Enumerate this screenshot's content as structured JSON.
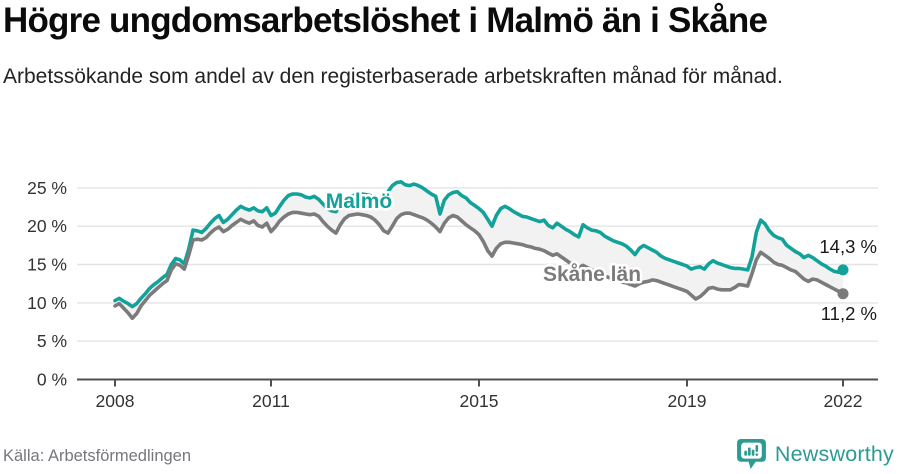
{
  "footer": {
    "source": "Källa: Arbetsförmedlingen",
    "logo_text": "Newsworthy",
    "logo_icon": "speech-bubble-bar-chart-icon"
  },
  "colors": {
    "malmo": "#13a29a",
    "skane": "#7b7b7b",
    "band": "#f2f2f2",
    "grid": "#e4e4e4",
    "axis": "#4f4f4f",
    "tick_label": "#333333",
    "end_label": "#1a1a1a",
    "title": "#0b0b0b",
    "subtitle": "#232323",
    "source": "#76767e",
    "logo": "#2d9a94"
  },
  "chart_data": {
    "type": "line",
    "title": "Högre ungdomsarbetslöshet i Malmö än i Skåne",
    "subtitle": "Arbetssökande som andel av den registerbaserade arbetskraften månad för månad.",
    "unit": "%",
    "grid": true,
    "legend_position": "inline-labels",
    "x_range": [
      2008.0,
      2022.0
    ],
    "ylim": [
      0,
      26.5
    ],
    "x_ticks": [
      {
        "year": 2008,
        "label": "2008"
      },
      {
        "year": 2011,
        "label": "2011"
      },
      {
        "year": 2015,
        "label": "2015"
      },
      {
        "year": 2019,
        "label": "2019"
      },
      {
        "year": 2022,
        "label": "2022"
      }
    ],
    "y_ticks": [
      {
        "value": 0,
        "label": "0 %"
      },
      {
        "value": 5,
        "label": "5 %"
      },
      {
        "value": 10,
        "label": "10 %"
      },
      {
        "value": 15,
        "label": "15 %"
      },
      {
        "value": 20,
        "label": "20 %"
      },
      {
        "value": 25,
        "label": "25 %"
      }
    ],
    "series": [
      {
        "name": "Malmö",
        "color_key": "malmo",
        "start_year": 2008,
        "interval_months": 1,
        "end_label": "14,3 %",
        "values": [
          10.3,
          10.6,
          10.2,
          9.9,
          9.5,
          9.9,
          10.6,
          11.2,
          11.9,
          12.4,
          12.8,
          13.3,
          13.7,
          15.0,
          15.8,
          15.6,
          15.1,
          17.0,
          19.5,
          19.4,
          19.2,
          19.7,
          20.4,
          21.0,
          21.4,
          20.5,
          20.9,
          21.5,
          22.1,
          22.6,
          22.3,
          22.1,
          22.4,
          22.0,
          21.9,
          22.4,
          21.4,
          21.7,
          22.6,
          23.4,
          24.0,
          24.2,
          24.2,
          24.1,
          23.8,
          23.7,
          23.9,
          23.5,
          22.9,
          22.3,
          22.0,
          21.9,
          22.8,
          23.4,
          23.9,
          24.0,
          24.2,
          24.2,
          24.1,
          24.0,
          23.7,
          23.4,
          23.8,
          24.5,
          25.3,
          25.7,
          25.8,
          25.4,
          25.3,
          25.5,
          25.3,
          25.0,
          24.6,
          24.2,
          23.9,
          21.6,
          23.4,
          24.1,
          24.4,
          24.5,
          24.0,
          23.7,
          23.1,
          22.7,
          22.3,
          21.8,
          20.9,
          20.0,
          21.4,
          22.3,
          22.6,
          22.3,
          21.9,
          21.6,
          21.3,
          21.2,
          21.0,
          20.8,
          20.6,
          20.8,
          20.1,
          19.8,
          20.4,
          20.0,
          19.6,
          19.3,
          18.9,
          18.6,
          20.2,
          19.8,
          19.5,
          19.4,
          19.2,
          18.7,
          18.4,
          18.1,
          17.9,
          17.7,
          17.4,
          16.9,
          16.3,
          17.1,
          17.5,
          17.2,
          16.9,
          16.6,
          16.1,
          15.8,
          15.6,
          15.4,
          15.2,
          15.0,
          14.8,
          14.4,
          14.6,
          14.7,
          14.4,
          15.1,
          15.5,
          15.2,
          15.0,
          14.8,
          14.6,
          14.5,
          14.5,
          14.4,
          14.3,
          16.0,
          19.2,
          20.8,
          20.3,
          19.4,
          18.8,
          18.5,
          18.3,
          17.5,
          17.1,
          16.7,
          16.4,
          15.9,
          16.2,
          15.9,
          15.5,
          15.1,
          14.8,
          14.4,
          14.1,
          14.0,
          14.3
        ]
      },
      {
        "name": "Skåne län",
        "color_key": "skane",
        "start_year": 2008,
        "interval_months": 1,
        "end_label": "11,2 %",
        "values": [
          9.6,
          9.9,
          9.3,
          8.7,
          8.0,
          8.6,
          9.6,
          10.3,
          11.0,
          11.5,
          12.0,
          12.5,
          12.9,
          14.3,
          15.1,
          14.9,
          14.4,
          16.2,
          18.2,
          18.3,
          18.2,
          18.5,
          19.1,
          19.6,
          19.9,
          19.3,
          19.6,
          20.1,
          20.5,
          20.9,
          20.6,
          20.4,
          20.7,
          20.1,
          19.9,
          20.4,
          19.3,
          19.9,
          20.7,
          21.2,
          21.6,
          21.8,
          21.8,
          21.7,
          21.6,
          21.5,
          21.6,
          21.3,
          20.6,
          20.0,
          19.5,
          19.1,
          20.2,
          21.0,
          21.4,
          21.5,
          21.6,
          21.5,
          21.4,
          21.2,
          20.8,
          20.2,
          19.4,
          19.1,
          20.0,
          21.0,
          21.5,
          21.7,
          21.7,
          21.5,
          21.3,
          21.1,
          20.8,
          20.4,
          19.9,
          19.3,
          20.4,
          21.1,
          21.4,
          21.2,
          20.7,
          20.2,
          19.8,
          19.4,
          18.9,
          18.0,
          16.8,
          16.1,
          17.1,
          17.7,
          17.9,
          17.9,
          17.8,
          17.7,
          17.6,
          17.4,
          17.3,
          17.1,
          17.0,
          16.8,
          16.5,
          16.2,
          16.4,
          16.0,
          15.6,
          15.2,
          14.9,
          14.6,
          14.9,
          14.6,
          14.3,
          14.1,
          13.8,
          13.5,
          13.3,
          13.1,
          12.9,
          12.7,
          12.6,
          12.4,
          12.2,
          12.5,
          12.7,
          12.8,
          13.0,
          12.9,
          12.7,
          12.5,
          12.3,
          12.1,
          11.9,
          11.7,
          11.5,
          11.0,
          10.5,
          10.8,
          11.3,
          11.9,
          12.0,
          11.8,
          11.7,
          11.7,
          11.7,
          12.0,
          12.4,
          12.3,
          12.2,
          13.8,
          15.6,
          16.6,
          16.2,
          15.8,
          15.3,
          15.0,
          14.9,
          14.6,
          14.3,
          14.1,
          13.6,
          13.1,
          12.8,
          13.1,
          13.0,
          12.7,
          12.4,
          12.1,
          11.8,
          11.5,
          11.2
        ]
      }
    ]
  }
}
